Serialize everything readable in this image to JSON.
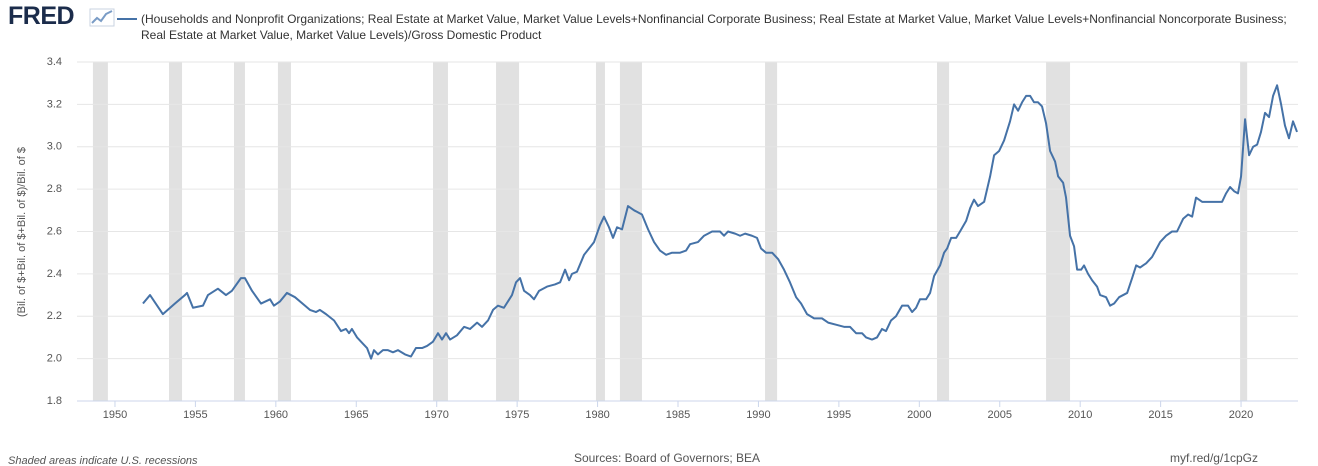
{
  "logo": "FRED",
  "chart_data": {
    "type": "line",
    "y_label": "(Bil. of $+Bil. of $+Bil. of $)/Bil. of $",
    "note": "Shaded areas indicate U.S. recessions",
    "source": "Sources: Board of Governors; BEA",
    "link": "myf.red/g/1cpGz",
    "grid": true,
    "xlim": [
      1947.64,
      2023.54
    ],
    "ylim": [
      1.8,
      3.4
    ],
    "xticks": [
      1950,
      1955,
      1960,
      1965,
      1970,
      1975,
      1980,
      1985,
      1990,
      1995,
      2000,
      2005,
      2010,
      2015,
      2020
    ],
    "yticks": [
      1.8,
      {
        "value": 2,
        "label": "2.0"
      },
      2.2,
      2.4,
      2.6,
      2.8,
      {
        "value": 3,
        "label": "3.0"
      },
      3.2,
      3.4
    ],
    "recession_color": "#e1e1e1",
    "recessions": [
      [
        1948.63,
        1949.56
      ],
      [
        1953.36,
        1954.17
      ],
      [
        1957.4,
        1958.08
      ],
      [
        1960.13,
        1960.94
      ],
      [
        1969.77,
        1970.7
      ],
      [
        1973.69,
        1975.12
      ],
      [
        1979.9,
        1980.46
      ],
      [
        1981.39,
        1982.76
      ],
      [
        1990.41,
        1991.16
      ],
      [
        2001.1,
        2001.85
      ],
      [
        2007.88,
        2009.37
      ],
      [
        2019.94,
        2020.38
      ]
    ],
    "x": [
      1951.74,
      1952.18,
      1952.98,
      1953.73,
      1954.35,
      1954.48,
      1954.85,
      1955.47,
      1955.78,
      1956.4,
      1956.9,
      1957.27,
      1957.83,
      1958.08,
      1958.52,
      1959.08,
      1959.64,
      1959.88,
      1960.26,
      1960.69,
      1961.19,
      1961.81,
      1962.12,
      1962.5,
      1962.74,
      1963.12,
      1963.62,
      1964.05,
      1964.36,
      1964.55,
      1964.73,
      1965.05,
      1965.42,
      1965.67,
      1965.92,
      1966.1,
      1966.35,
      1966.66,
      1966.97,
      1967.28,
      1967.59,
      1968.03,
      1968.4,
      1968.71,
      1969.09,
      1969.4,
      1969.77,
      1970.08,
      1970.33,
      1970.58,
      1970.83,
      1971.26,
      1971.7,
      1972.07,
      1972.51,
      1972.82,
      1973.19,
      1973.5,
      1973.81,
      1974.18,
      1974.68,
      1974.93,
      1975.18,
      1975.43,
      1975.8,
      1976.05,
      1976.36,
      1976.86,
      1977.35,
      1977.67,
      1977.98,
      1978.23,
      1978.41,
      1978.72,
      1979.16,
      1979.78,
      1980.15,
      1980.4,
      1980.71,
      1980.96,
      1981.21,
      1981.52,
      1981.89,
      1982.27,
      1982.76,
      1983.14,
      1983.51,
      1983.88,
      1984.26,
      1984.63,
      1985.13,
      1985.5,
      1985.75,
      1986.24,
      1986.62,
      1987.12,
      1987.61,
      1987.86,
      1988.11,
      1988.55,
      1988.86,
      1989.17,
      1989.6,
      1989.91,
      1990.16,
      1990.47,
      1990.85,
      1991.22,
      1991.59,
      1991.96,
      1992.34,
      1992.65,
      1993.02,
      1993.46,
      1993.95,
      1994.33,
      1994.82,
      1995.32,
      1995.69,
      1996.07,
      1996.44,
      1996.69,
      1997.06,
      1997.37,
      1997.68,
      1997.93,
      1998.24,
      1998.55,
      1998.93,
      1999.3,
      1999.55,
      1999.8,
      2000.04,
      2000.42,
      2000.67,
      2000.92,
      2001.29,
      2001.54,
      2001.73,
      2001.98,
      2002.29,
      2002.53,
      2002.91,
      2003.16,
      2003.4,
      2003.65,
      2004.03,
      2004.4,
      2004.65,
      2004.96,
      2005.27,
      2005.64,
      2005.89,
      2006.14,
      2006.39,
      2006.64,
      2006.89,
      2007.13,
      2007.38,
      2007.63,
      2007.88,
      2008.13,
      2008.44,
      2008.63,
      2008.94,
      2009.12,
      2009.37,
      2009.62,
      2009.81,
      2010.06,
      2010.24,
      2010.49,
      2010.74,
      2011.05,
      2011.24,
      2011.61,
      2011.86,
      2012.11,
      2012.42,
      2012.92,
      2013.23,
      2013.48,
      2013.72,
      2014.1,
      2014.47,
      2014.97,
      2015.34,
      2015.71,
      2016.02,
      2016.4,
      2016.71,
      2016.96,
      2017.2,
      2017.58,
      2018.07,
      2018.57,
      2018.82,
      2019.07,
      2019.32,
      2019.57,
      2019.81,
      2020.0,
      2020.25,
      2020.5,
      2020.75,
      2021.0,
      2021.24,
      2021.49,
      2021.74,
      2021.99,
      2022.24,
      2022.49,
      2022.73,
      2022.98,
      2023.23,
      2023.48
    ],
    "series": [
      {
        "name": "(Households and Nonprofit Organizations; Real Estate at Market Value, Market Value Levels+Nonfinancial Corporate Business; Real Estate at Market Value, Market Value Levels+Nonfinancial Noncorporate Business; Real Estate at Market Value, Market Value Levels)/Gross Domestic Product",
        "color": "#4572a7",
        "values": [
          2.26,
          2.3,
          2.21,
          2.26,
          2.3,
          2.31,
          2.24,
          2.25,
          2.3,
          2.33,
          2.3,
          2.32,
          2.38,
          2.38,
          2.32,
          2.26,
          2.28,
          2.25,
          2.27,
          2.31,
          2.29,
          2.25,
          2.23,
          2.22,
          2.23,
          2.21,
          2.18,
          2.13,
          2.14,
          2.12,
          2.14,
          2.1,
          2.07,
          2.05,
          2.0,
          2.04,
          2.02,
          2.04,
          2.04,
          2.03,
          2.04,
          2.02,
          2.01,
          2.05,
          2.05,
          2.06,
          2.08,
          2.12,
          2.09,
          2.12,
          2.09,
          2.11,
          2.15,
          2.14,
          2.17,
          2.15,
          2.18,
          2.23,
          2.25,
          2.24,
          2.3,
          2.36,
          2.38,
          2.32,
          2.3,
          2.28,
          2.32,
          2.34,
          2.35,
          2.36,
          2.42,
          2.37,
          2.4,
          2.41,
          2.49,
          2.55,
          2.63,
          2.67,
          2.62,
          2.57,
          2.62,
          2.61,
          2.72,
          2.7,
          2.68,
          2.61,
          2.55,
          2.51,
          2.49,
          2.5,
          2.5,
          2.51,
          2.54,
          2.55,
          2.58,
          2.6,
          2.6,
          2.58,
          2.6,
          2.59,
          2.58,
          2.59,
          2.58,
          2.57,
          2.52,
          2.5,
          2.5,
          2.47,
          2.42,
          2.36,
          2.29,
          2.26,
          2.21,
          2.19,
          2.19,
          2.17,
          2.16,
          2.15,
          2.15,
          2.12,
          2.12,
          2.1,
          2.09,
          2.1,
          2.14,
          2.13,
          2.18,
          2.2,
          2.25,
          2.25,
          2.22,
          2.24,
          2.28,
          2.28,
          2.31,
          2.39,
          2.44,
          2.5,
          2.52,
          2.57,
          2.57,
          2.6,
          2.65,
          2.71,
          2.75,
          2.72,
          2.74,
          2.86,
          2.96,
          2.98,
          3.03,
          3.12,
          3.2,
          3.17,
          3.21,
          3.24,
          3.24,
          3.21,
          3.21,
          3.19,
          3.11,
          2.98,
          2.93,
          2.86,
          2.83,
          2.76,
          2.58,
          2.53,
          2.42,
          2.42,
          2.44,
          2.4,
          2.37,
          2.34,
          2.3,
          2.29,
          2.25,
          2.26,
          2.29,
          2.31,
          2.38,
          2.44,
          2.43,
          2.45,
          2.48,
          2.55,
          2.58,
          2.6,
          2.6,
          2.66,
          2.68,
          2.67,
          2.76,
          2.74,
          2.74,
          2.74,
          2.74,
          2.78,
          2.81,
          2.79,
          2.78,
          2.86,
          3.13,
          2.96,
          3.0,
          3.01,
          3.07,
          3.16,
          3.14,
          3.24,
          3.29,
          3.2,
          3.1,
          3.04,
          3.12,
          3.07
        ]
      }
    ]
  }
}
